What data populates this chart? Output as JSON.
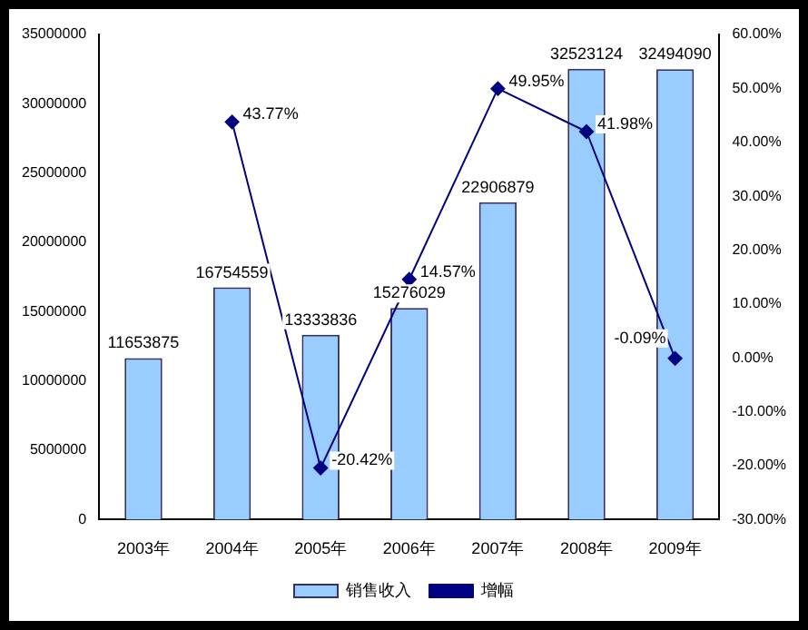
{
  "chart_data": {
    "type": "bar",
    "categories": [
      "2003年",
      "2004年",
      "2005年",
      "2006年",
      "2007年",
      "2008年",
      "2009年"
    ],
    "series": [
      {
        "name": "销售收入",
        "color": "#99ccff",
        "values": [
          11653875,
          16754559,
          13333836,
          15276029,
          22906879,
          32523124,
          32494090
        ],
        "value_labels": [
          "11653875",
          "16754559",
          "13333836",
          "15276029",
          "22906879",
          "32523124",
          "32494090"
        ]
      },
      {
        "name": "增幅",
        "type": "line",
        "axis": "y2",
        "color": "#000080",
        "values": [
          null,
          43.77,
          -20.42,
          14.57,
          49.95,
          41.98,
          -0.09
        ],
        "value_labels": [
          null,
          "43.77%",
          "-20.42%",
          "14.57%",
          "49.95%",
          "41.98%",
          "-0.09%"
        ]
      }
    ],
    "ylim": [
      0,
      35000000
    ],
    "yticks": [
      0,
      5000000,
      10000000,
      15000000,
      20000000,
      25000000,
      30000000,
      35000000
    ],
    "y2lim": [
      -30,
      60
    ],
    "y2ticks": [
      {
        "value": -30,
        "label": "-30.00%"
      },
      {
        "value": -20,
        "label": "-20.00%"
      },
      {
        "value": -10,
        "label": "-10.00%"
      },
      {
        "value": 0,
        "label": "0.00%"
      },
      {
        "value": 10,
        "label": "10.00%"
      },
      {
        "value": 20,
        "label": "20.00%"
      },
      {
        "value": 30,
        "label": "30.00%"
      },
      {
        "value": 40,
        "label": "40.00%"
      },
      {
        "value": 50,
        "label": "50.00%"
      },
      {
        "value": 60,
        "label": "60.00%"
      }
    ],
    "grid": false,
    "legend": "bottom",
    "marker": "diamond",
    "line_style": "solid"
  }
}
